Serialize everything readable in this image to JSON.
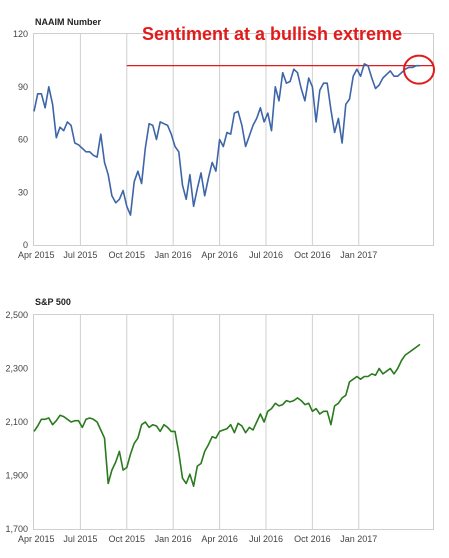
{
  "annotation": {
    "text": "Sentiment at a bullish extreme",
    "color": "#e01b1b",
    "reference_value": 102,
    "reference_from_x": 2015.75,
    "highlight_x": 2017.33,
    "highlight_y": 102
  },
  "chart_data": [
    {
      "type": "line",
      "title": "NAAIM Number",
      "color": "#3d65a8",
      "ylim": [
        0,
        120
      ],
      "yticks": [
        0,
        30,
        60,
        90,
        120
      ],
      "ytick_labels": [
        "0",
        "30",
        "60",
        "90",
        "120"
      ],
      "xlim": [
        2015.25,
        2017.4
      ],
      "xticks": [
        2015.25,
        2015.5,
        2015.75,
        2016.0,
        2016.25,
        2016.5,
        2016.75,
        2017.0
      ],
      "xtick_labels": [
        "Apr 2015",
        "Jul 2015",
        "Oct 2015",
        "Jan 2016",
        "Apr 2016",
        "Jul 2016",
        "Oct 2016",
        "Jan 2017"
      ],
      "grid": "x",
      "x": [
        2015.25,
        2015.27,
        2015.29,
        2015.31,
        2015.33,
        2015.35,
        2015.37,
        2015.39,
        2015.41,
        2015.43,
        2015.45,
        2015.47,
        2015.49,
        2015.51,
        2015.53,
        2015.55,
        2015.57,
        2015.59,
        2015.61,
        2015.63,
        2015.65,
        2015.67,
        2015.69,
        2015.71,
        2015.73,
        2015.75,
        2015.77,
        2015.79,
        2015.81,
        2015.83,
        2015.85,
        2015.87,
        2015.89,
        2015.91,
        2015.93,
        2015.95,
        2015.97,
        2015.99,
        2016.01,
        2016.03,
        2016.05,
        2016.07,
        2016.09,
        2016.11,
        2016.13,
        2016.15,
        2016.17,
        2016.19,
        2016.21,
        2016.23,
        2016.25,
        2016.27,
        2016.29,
        2016.31,
        2016.33,
        2016.35,
        2016.37,
        2016.39,
        2016.41,
        2016.43,
        2016.45,
        2016.47,
        2016.49,
        2016.51,
        2016.53,
        2016.55,
        2016.57,
        2016.59,
        2016.61,
        2016.63,
        2016.65,
        2016.67,
        2016.69,
        2016.71,
        2016.73,
        2016.75,
        2016.77,
        2016.79,
        2016.81,
        2016.83,
        2016.85,
        2016.87,
        2016.89,
        2016.91,
        2016.93,
        2016.95,
        2016.97,
        2016.99,
        2017.01,
        2017.03,
        2017.05,
        2017.07,
        2017.09,
        2017.11,
        2017.13,
        2017.15,
        2017.17,
        2017.19,
        2017.21,
        2017.23,
        2017.25,
        2017.27,
        2017.29,
        2017.31,
        2017.33
      ],
      "values": [
        76,
        86,
        86,
        78,
        90,
        80,
        61,
        67,
        65,
        70,
        68,
        58,
        57,
        55,
        53,
        53,
        51,
        50,
        63,
        47,
        40,
        28,
        24,
        26,
        31,
        22,
        17,
        36,
        42,
        35,
        55,
        69,
        68,
        60,
        70,
        69,
        68,
        63,
        56,
        53,
        34,
        26,
        40,
        22,
        32,
        41,
        28,
        38,
        47,
        42,
        60,
        56,
        64,
        63,
        75,
        76,
        68,
        56,
        62,
        68,
        72,
        78,
        70,
        75,
        65,
        90,
        82,
        98,
        92,
        93,
        100,
        98,
        89,
        82,
        95,
        90,
        70,
        88,
        92,
        92,
        77,
        64,
        72,
        58,
        80,
        83,
        96,
        100,
        96,
        103,
        102,
        95,
        89,
        91,
        95,
        97,
        99,
        96,
        96,
        98,
        100,
        101,
        101,
        102,
        102
      ]
    },
    {
      "type": "line",
      "title": "S&P 500",
      "color": "#2a7a1e",
      "ylim": [
        1700,
        2500
      ],
      "yticks": [
        1700,
        1900,
        2100,
        2300,
        2500
      ],
      "ytick_labels": [
        "1,700",
        "1,900",
        "2,100",
        "2,300",
        "2,500"
      ],
      "xlim": [
        2015.25,
        2017.4
      ],
      "xticks": [
        2015.25,
        2015.5,
        2015.75,
        2016.0,
        2016.25,
        2016.5,
        2016.75,
        2017.0
      ],
      "xtick_labels": [
        "Apr 2015",
        "Jul 2015",
        "Oct 2015",
        "Jan 2016",
        "Apr 2016",
        "Jul 2016",
        "Oct 2016",
        "Jan 2017"
      ],
      "grid": "x",
      "x": [
        2015.25,
        2015.27,
        2015.29,
        2015.31,
        2015.33,
        2015.35,
        2015.37,
        2015.39,
        2015.41,
        2015.43,
        2015.45,
        2015.47,
        2015.49,
        2015.51,
        2015.53,
        2015.55,
        2015.57,
        2015.59,
        2015.61,
        2015.63,
        2015.65,
        2015.67,
        2015.69,
        2015.71,
        2015.73,
        2015.75,
        2015.77,
        2015.79,
        2015.81,
        2015.83,
        2015.85,
        2015.87,
        2015.89,
        2015.91,
        2015.93,
        2015.95,
        2015.97,
        2015.99,
        2016.01,
        2016.03,
        2016.05,
        2016.07,
        2016.09,
        2016.11,
        2016.13,
        2016.15,
        2016.17,
        2016.19,
        2016.21,
        2016.23,
        2016.25,
        2016.27,
        2016.29,
        2016.31,
        2016.33,
        2016.35,
        2016.37,
        2016.39,
        2016.41,
        2016.43,
        2016.45,
        2016.47,
        2016.49,
        2016.51,
        2016.53,
        2016.55,
        2016.57,
        2016.59,
        2016.61,
        2016.63,
        2016.65,
        2016.67,
        2016.69,
        2016.71,
        2016.73,
        2016.75,
        2016.77,
        2016.79,
        2016.81,
        2016.83,
        2016.85,
        2016.87,
        2016.89,
        2016.91,
        2016.93,
        2016.95,
        2016.97,
        2016.99,
        2017.01,
        2017.03,
        2017.05,
        2017.07,
        2017.09,
        2017.11,
        2017.13,
        2017.15,
        2017.17,
        2017.19,
        2017.21,
        2017.23,
        2017.25,
        2017.27,
        2017.29,
        2017.31,
        2017.33
      ],
      "values": [
        2065,
        2085,
        2110,
        2110,
        2115,
        2090,
        2105,
        2125,
        2120,
        2110,
        2100,
        2105,
        2105,
        2080,
        2110,
        2115,
        2110,
        2100,
        2070,
        2040,
        1870,
        1920,
        1950,
        1990,
        1920,
        1930,
        1980,
        2020,
        2040,
        2090,
        2100,
        2080,
        2090,
        2085,
        2065,
        2090,
        2080,
        2065,
        2065,
        1985,
        1890,
        1870,
        1905,
        1860,
        1935,
        1945,
        1990,
        2015,
        2045,
        2040,
        2065,
        2070,
        2075,
        2090,
        2060,
        2095,
        2085,
        2060,
        2080,
        2070,
        2100,
        2130,
        2100,
        2140,
        2150,
        2170,
        2160,
        2165,
        2180,
        2175,
        2180,
        2190,
        2180,
        2165,
        2170,
        2140,
        2150,
        2130,
        2140,
        2140,
        2090,
        2160,
        2170,
        2190,
        2200,
        2250,
        2260,
        2270,
        2260,
        2270,
        2270,
        2280,
        2275,
        2300,
        2280,
        2290,
        2300,
        2280,
        2300,
        2330,
        2350,
        2360,
        2370,
        2380,
        2390
      ]
    }
  ]
}
